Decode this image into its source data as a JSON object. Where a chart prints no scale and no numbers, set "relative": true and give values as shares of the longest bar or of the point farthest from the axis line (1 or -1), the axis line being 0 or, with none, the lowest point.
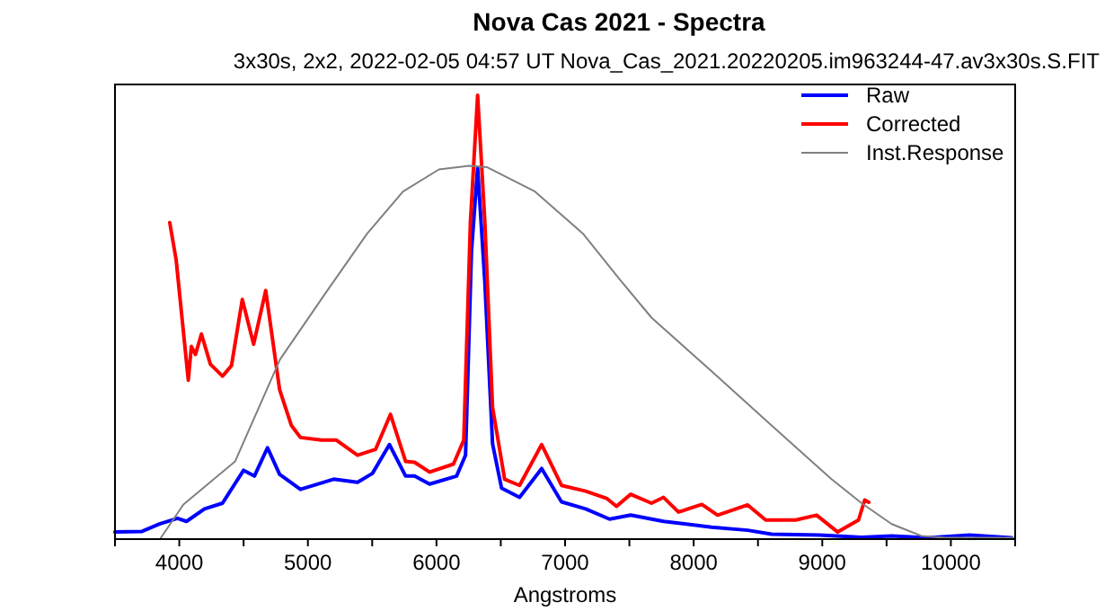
{
  "chart_data": {
    "type": "line",
    "title": "Nova Cas 2021 - Spectra",
    "subtitle": "3x30s, 2x2, 2022-02-05 04:57 UT   Nova_Cas_2021.20220205.im963244-47.av3x30s.S.FIT",
    "xlabel": "Angstroms",
    "relative": true,
    "tick_labels": "x",
    "grid": false,
    "legend": "top right",
    "marker": "none",
    "line_style": "solid",
    "xlim": [
      3500,
      10500
    ],
    "xticks": [
      {
        "value": 3500,
        "label": null
      },
      4000,
      {
        "value": 4500,
        "label": null
      },
      5000,
      {
        "value": 5500,
        "label": null
      },
      6000,
      {
        "value": 6500,
        "label": null
      },
      7000,
      {
        "value": 7500,
        "label": null
      },
      8000,
      {
        "value": 8500,
        "label": null
      },
      9000,
      {
        "value": 9500,
        "label": null
      },
      10000,
      {
        "value": 10500,
        "label": null
      }
    ],
    "series": [
      {
        "name": "Raw",
        "color": "#0000ff",
        "x": [
          3500,
          3706,
          3846,
          3986,
          4056,
          4196,
          4336,
          4500,
          4584,
          4686,
          4780,
          4942,
          5200,
          5386,
          5502,
          5634,
          5760,
          5830,
          5946,
          6156,
          6226,
          6272,
          6320,
          6376,
          6436,
          6506,
          6646,
          6818,
          6972,
          7160,
          7346,
          7510,
          7766,
          8140,
          8420,
          8606,
          8980,
          9306,
          9540,
          9820,
          10146,
          10472
        ],
        "values": [
          0.016,
          0.017,
          0.034,
          0.047,
          0.04,
          0.068,
          0.081,
          0.155,
          0.142,
          0.206,
          0.146,
          0.112,
          0.135,
          0.128,
          0.148,
          0.213,
          0.142,
          0.142,
          0.124,
          0.142,
          0.189,
          0.648,
          0.837,
          0.58,
          0.215,
          0.115,
          0.094,
          0.159,
          0.084,
          0.068,
          0.045,
          0.054,
          0.04,
          0.027,
          0.02,
          0.011,
          0.009,
          0.004,
          0.007,
          0.003,
          0.009,
          0.003
        ]
      },
      {
        "name": "Corrected",
        "color": "#ff0000",
        "x": [
          3926,
          3976,
          4070,
          4094,
          4126,
          4172,
          4242,
          4336,
          4406,
          4490,
          4578,
          4672,
          4780,
          4872,
          4942,
          5106,
          5222,
          5386,
          5526,
          5642,
          5760,
          5830,
          5946,
          6132,
          6212,
          6264,
          6320,
          6376,
          6436,
          6530,
          6646,
          6818,
          6972,
          7160,
          7322,
          7400,
          7510,
          7672,
          7766,
          7882,
          8064,
          8186,
          8420,
          8560,
          8792,
          8956,
          9120,
          9282,
          9330,
          9362
        ],
        "values": [
          0.713,
          0.628,
          0.358,
          0.434,
          0.416,
          0.462,
          0.394,
          0.367,
          0.391,
          0.54,
          0.439,
          0.56,
          0.337,
          0.256,
          0.229,
          0.223,
          0.223,
          0.189,
          0.202,
          0.281,
          0.175,
          0.173,
          0.151,
          0.169,
          0.223,
          0.715,
          1.0,
          0.715,
          0.297,
          0.135,
          0.121,
          0.213,
          0.121,
          0.108,
          0.092,
          0.074,
          0.101,
          0.081,
          0.094,
          0.061,
          0.078,
          0.054,
          0.077,
          0.043,
          0.043,
          0.054,
          0.016,
          0.043,
          0.088,
          0.083
        ]
      },
      {
        "name": "Inst.Response",
        "color": "#808080",
        "x": [
          3850,
          4032,
          4434,
          4784,
          5134,
          5460,
          5740,
          6020,
          6254,
          6394,
          6766,
          7140,
          7420,
          7672,
          8140,
          8606,
          9072,
          9306,
          9540,
          9772,
          9960,
          10500
        ],
        "values": [
          0,
          0.078,
          0.175,
          0.405,
          0.553,
          0.688,
          0.783,
          0.833,
          0.841,
          0.838,
          0.783,
          0.688,
          0.587,
          0.499,
          0.378,
          0.256,
          0.135,
          0.081,
          0.034,
          0.007,
          0.003,
          0.003
        ]
      }
    ]
  }
}
